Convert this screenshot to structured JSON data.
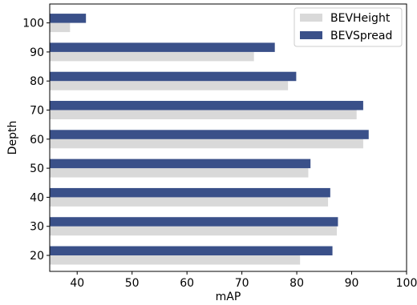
{
  "chart_data": {
    "type": "bar",
    "orientation": "horizontal",
    "categories": [
      20,
      30,
      40,
      50,
      60,
      70,
      80,
      90,
      100
    ],
    "series": [
      {
        "name": "BEVHeight",
        "values": [
          80.6,
          87.3,
          85.7,
          82.1,
          92.1,
          90.9,
          78.4,
          72.2,
          38.7
        ],
        "color": "#d9d9d9"
      },
      {
        "name": "BEVSpread",
        "values": [
          86.5,
          87.5,
          86.1,
          82.5,
          93.1,
          92.1,
          79.9,
          76.0,
          41.6
        ],
        "color": "#3a5089"
      }
    ],
    "xlabel": "mAP",
    "ylabel": "Depth",
    "xlim": [
      35,
      100
    ],
    "xticks": [
      40,
      50,
      60,
      70,
      80,
      90,
      100
    ],
    "yticks": [
      20,
      30,
      40,
      50,
      60,
      70,
      80,
      90,
      100
    ],
    "grid": false,
    "legend_position": "top-right"
  }
}
